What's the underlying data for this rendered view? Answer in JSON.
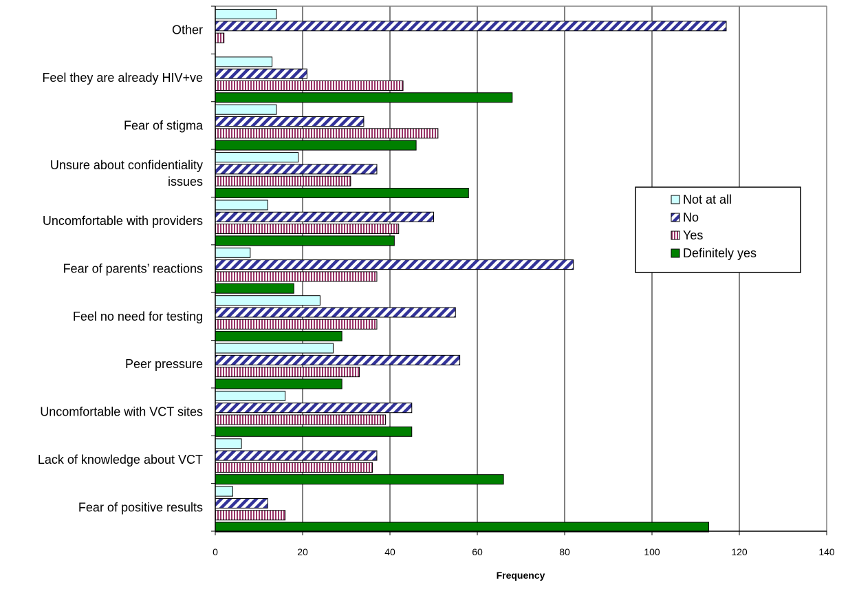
{
  "chart_data": {
    "type": "bar",
    "orientation": "horizontal",
    "title": "",
    "xlabel": "Frequency",
    "ylabel": "",
    "xlim": [
      0,
      140
    ],
    "x_ticks": [
      "0",
      "20",
      "40",
      "60",
      "80",
      "100",
      "120",
      "140"
    ],
    "grid": "vertical",
    "legend_position": "right",
    "categories": [
      [
        "Other"
      ],
      [
        "Feel they are already HIV+ve"
      ],
      [
        "Fear of stigma"
      ],
      [
        "Unsure about confidentiality",
        "issues"
      ],
      [
        "Uncomfortable with providers"
      ],
      [
        "Fear of parents’ reactions"
      ],
      [
        "Feel no need for testing"
      ],
      [
        "Peer pressure"
      ],
      [
        "Uncomfortable with VCT sites"
      ],
      [
        "Lack of knowledge about VCT"
      ],
      [
        "Fear of positive results"
      ]
    ],
    "series": [
      {
        "name": "Not at all",
        "color": "#ccffff",
        "pattern": "solid",
        "values": [
          14,
          13,
          14,
          19,
          12,
          8,
          24,
          27,
          16,
          6,
          4
        ]
      },
      {
        "name": "No",
        "color": "#333399",
        "pattern": "diagonal-stripes",
        "values": [
          117,
          21,
          34,
          37,
          50,
          82,
          55,
          56,
          45,
          37,
          12
        ]
      },
      {
        "name": "Yes",
        "color": "#993366",
        "pattern": "vertical-stripes",
        "values": [
          2,
          43,
          51,
          31,
          42,
          37,
          37,
          33,
          39,
          36,
          16
        ]
      },
      {
        "name": "Definitely yes",
        "color": "#008000",
        "pattern": "solid",
        "values": [
          0,
          68,
          46,
          58,
          41,
          18,
          29,
          29,
          45,
          66,
          113
        ]
      }
    ]
  }
}
